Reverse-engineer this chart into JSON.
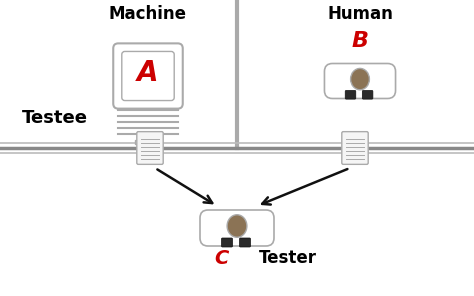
{
  "bg_color": "#ffffff",
  "title_color": "#000000",
  "label_color": "#cc0000",
  "machine_label": "Machine",
  "human_label": "Human",
  "testee_label": "Testee",
  "tester_label": "Tester",
  "letter_A": "A",
  "letter_B": "B",
  "letter_C": "C",
  "monitor_outline": "#aaaaaa",
  "person_body_color": "#ffffff",
  "person_head_color": "#8B7355",
  "person_feet_color": "#2a2a2a",
  "wall_color": "#aaaaaa",
  "paper_color": "#f5f5f5",
  "paper_line_color": "#aaaaaa",
  "arrow_color": "#111111",
  "figw": 4.74,
  "figh": 2.96,
  "dpi": 100
}
